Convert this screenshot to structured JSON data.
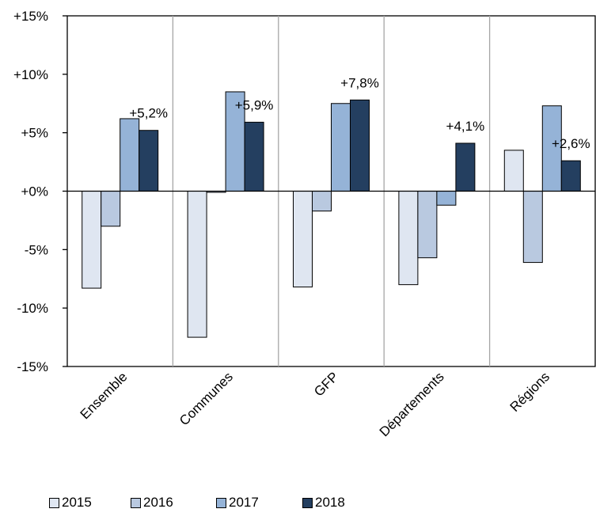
{
  "chart_data": {
    "type": "bar",
    "categories": [
      "Ensemble",
      "Communes",
      "GFP",
      "Départements",
      "Régions"
    ],
    "series": [
      {
        "name": "2015",
        "values": [
          -8.3,
          -12.5,
          -8.2,
          -8.0,
          3.5
        ],
        "color": "#dfe6f1"
      },
      {
        "name": "2016",
        "values": [
          -3.0,
          -0.1,
          -1.7,
          -5.7,
          -6.1
        ],
        "color": "#b9c9e0"
      },
      {
        "name": "2017",
        "values": [
          6.2,
          8.5,
          7.5,
          -1.2,
          7.3
        ],
        "color": "#95b3d7"
      },
      {
        "name": "2018",
        "values": [
          5.2,
          5.9,
          7.8,
          4.1,
          2.6
        ],
        "color": "#243f60"
      }
    ],
    "data_labels": [
      {
        "category": "Ensemble",
        "series": "2018",
        "text": "+5,2%"
      },
      {
        "category": "Communes",
        "series": "2018",
        "text": "+5,9%"
      },
      {
        "category": "GFP",
        "series": "2018",
        "text": "+7,8%"
      },
      {
        "category": "Départements",
        "series": "2018",
        "text": "+4,1%"
      },
      {
        "category": "Régions",
        "series": "2018",
        "text": "+2,6%"
      }
    ],
    "y_ticks": [
      15,
      10,
      5,
      0,
      -5,
      -10,
      -15
    ],
    "y_tick_labels": [
      "+15%",
      "+10%",
      "+5%",
      "+0%",
      "-5%",
      "-10%",
      "-15%"
    ],
    "ylim": [
      -15,
      15
    ],
    "grid": "vertical separators between categories",
    "legend_position": "bottom-left",
    "title": "",
    "xlabel": "",
    "ylabel": ""
  }
}
